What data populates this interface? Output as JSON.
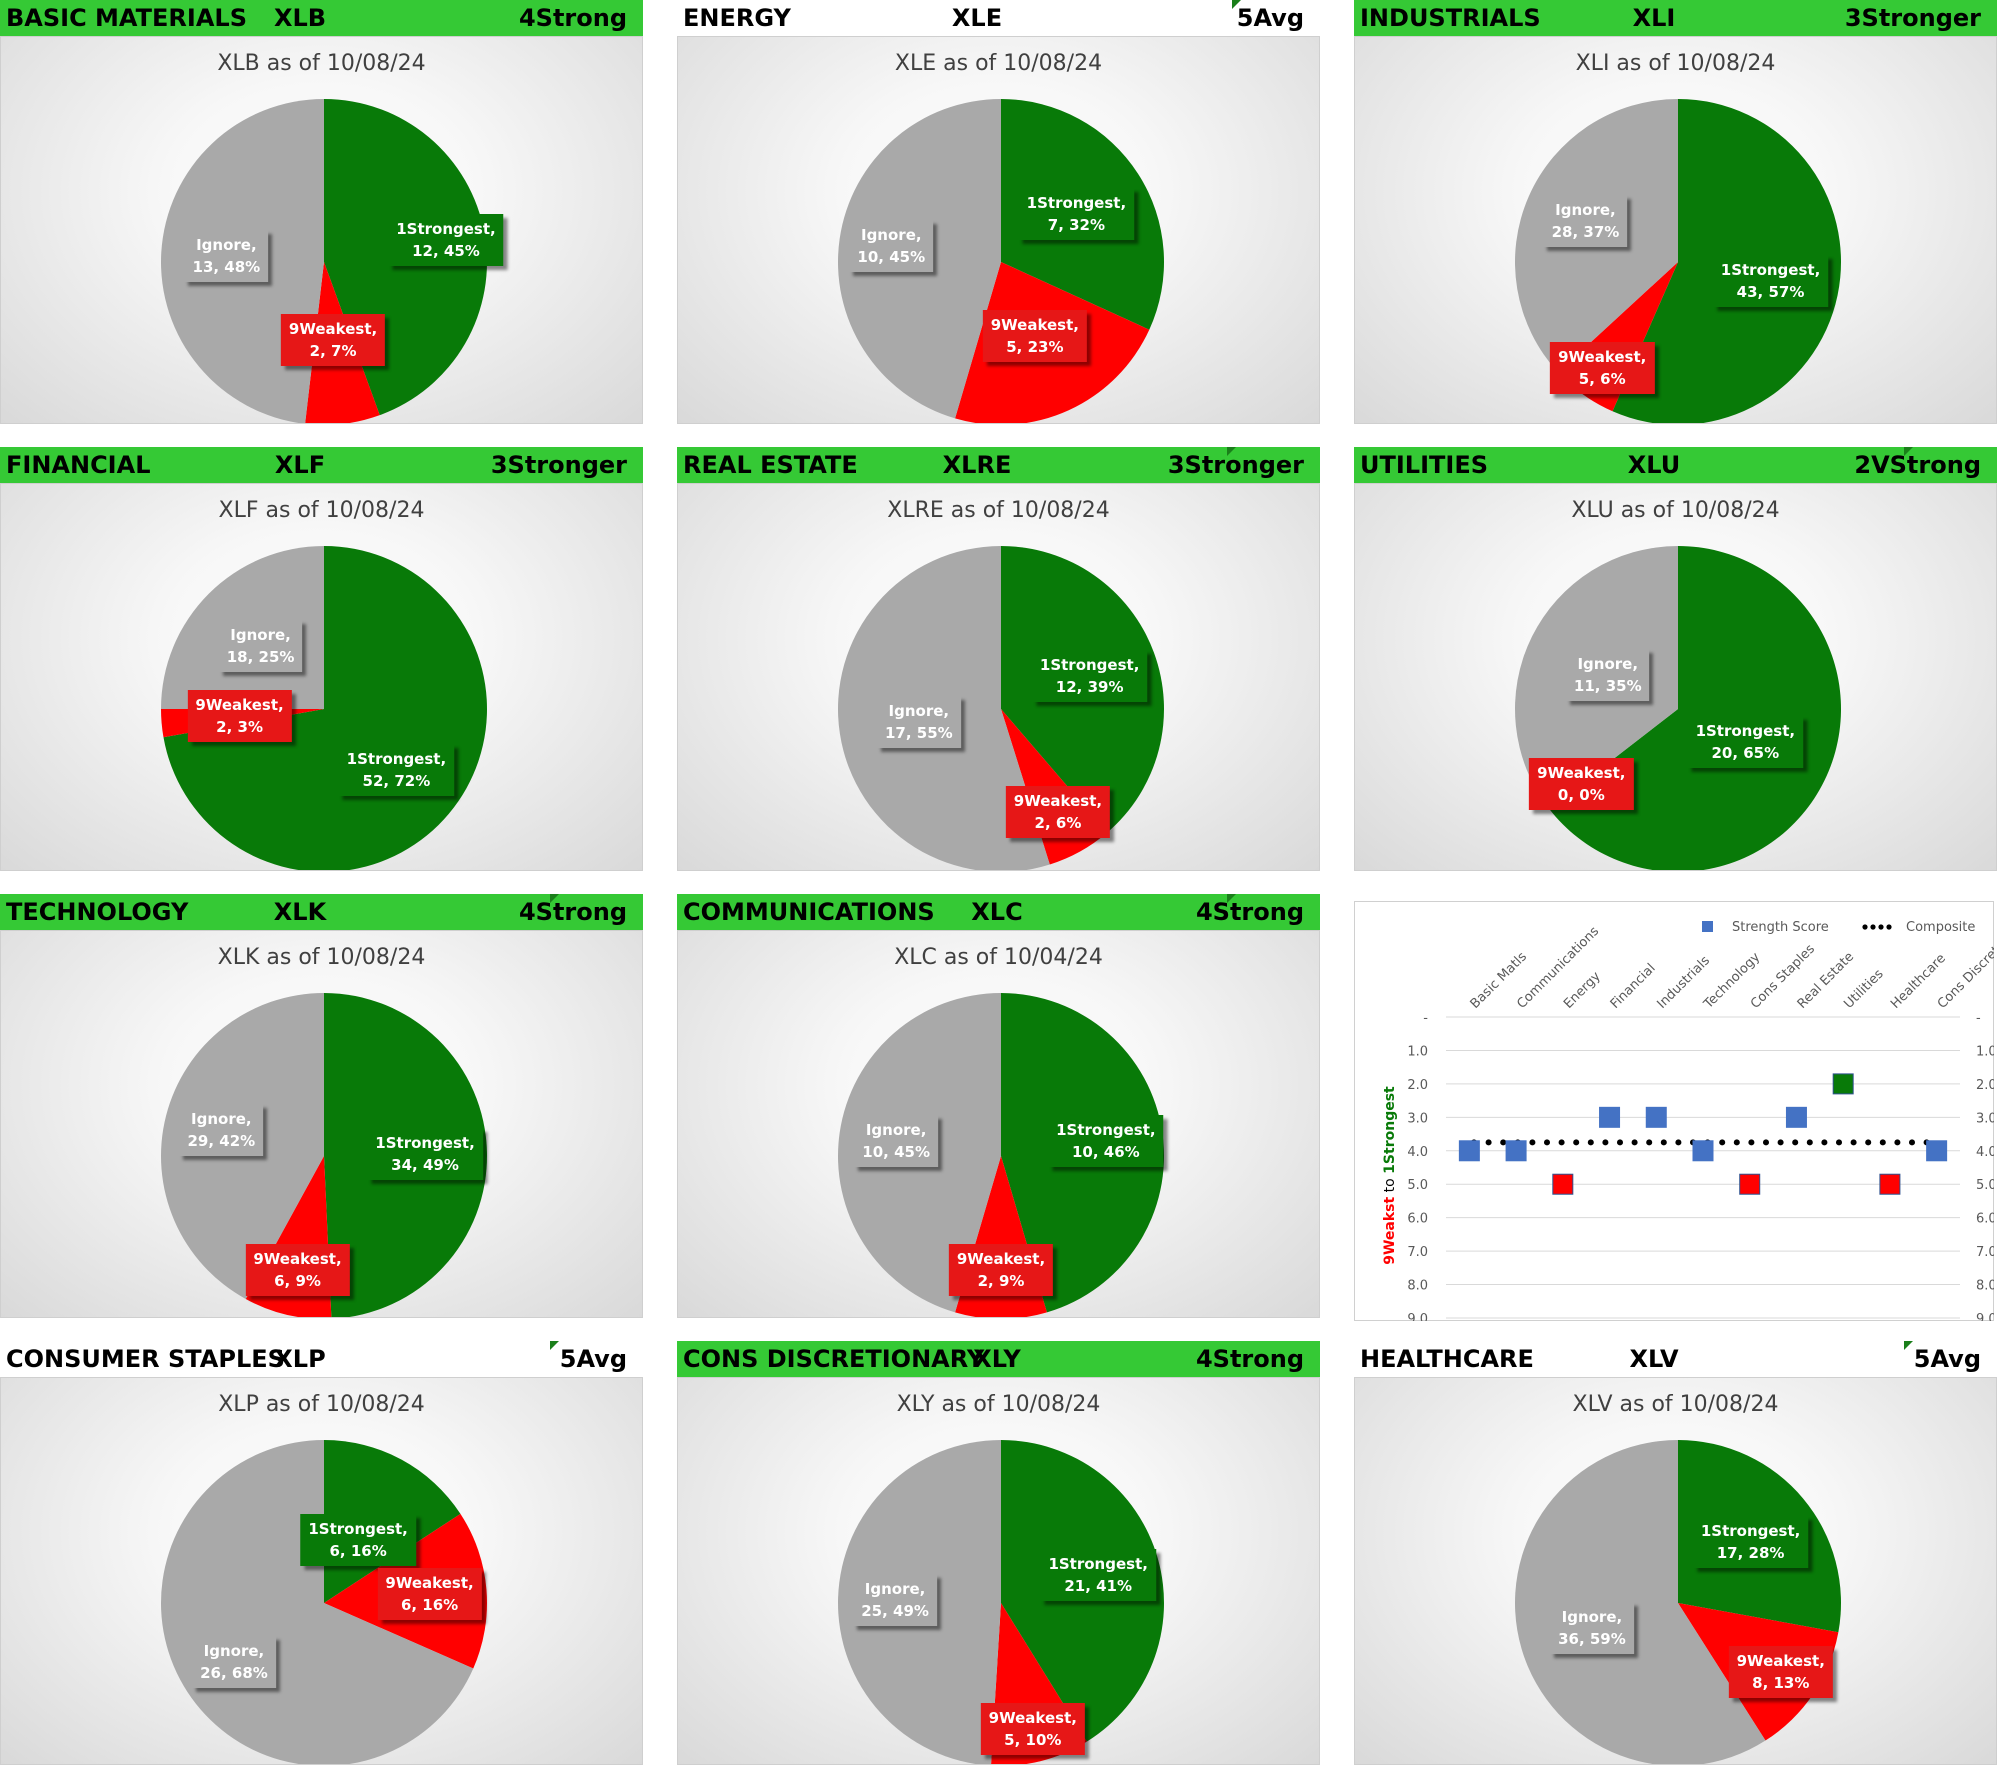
{
  "chart_data": [
    {
      "type": "pie",
      "sector": "BASIC MATERIALS",
      "ticker": "XLB",
      "rating": "4Strong",
      "header_style": "green",
      "title": "XLB as of 10/08/24",
      "slices": [
        {
          "name": "1Strongest",
          "value": 12,
          "pct": "45%",
          "color": "#087a08"
        },
        {
          "name": "9Weakest",
          "value": 2,
          "pct": "7%",
          "color": "#ff0000"
        },
        {
          "name": "Ignore",
          "value": 13,
          "pct": "48%",
          "color": "#a9a9a9"
        }
      ]
    },
    {
      "type": "pie",
      "sector": "ENERGY",
      "ticker": "XLE",
      "rating": "5Avg",
      "header_style": "white",
      "title": "XLE as of 10/08/24",
      "slices": [
        {
          "name": "1Strongest",
          "value": 7,
          "pct": "32%",
          "color": "#087a08"
        },
        {
          "name": "9Weakest",
          "value": 5,
          "pct": "23%",
          "color": "#ff0000"
        },
        {
          "name": "Ignore",
          "value": 10,
          "pct": "45%",
          "color": "#a9a9a9"
        }
      ]
    },
    {
      "type": "pie",
      "sector": "INDUSTRIALS",
      "ticker": "XLI",
      "rating": "3Stronger",
      "header_style": "green",
      "title": "XLI as of 10/08/24",
      "slices": [
        {
          "name": "1Strongest",
          "value": 43,
          "pct": "57%",
          "color": "#087a08"
        },
        {
          "name": "9Weakest",
          "value": 5,
          "pct": "6%",
          "color": "#ff0000"
        },
        {
          "name": "Ignore",
          "value": 28,
          "pct": "37%",
          "color": "#a9a9a9"
        }
      ]
    },
    {
      "type": "pie",
      "sector": "FINANCIAL",
      "ticker": "XLF",
      "rating": "3Stronger",
      "header_style": "green",
      "title": "XLF as of 10/08/24",
      "slices": [
        {
          "name": "1Strongest",
          "value": 52,
          "pct": "72%",
          "color": "#087a08"
        },
        {
          "name": "9Weakest",
          "value": 2,
          "pct": "3%",
          "color": "#ff0000"
        },
        {
          "name": "Ignore",
          "value": 18,
          "pct": "25%",
          "color": "#a9a9a9"
        }
      ]
    },
    {
      "type": "pie",
      "sector": "REAL ESTATE",
      "ticker": "XLRE",
      "rating": "3Stronger",
      "header_style": "green",
      "title": "XLRE as of 10/08/24",
      "slices": [
        {
          "name": "1Strongest",
          "value": 12,
          "pct": "39%",
          "color": "#087a08"
        },
        {
          "name": "9Weakest",
          "value": 2,
          "pct": "6%",
          "color": "#ff0000"
        },
        {
          "name": "Ignore",
          "value": 17,
          "pct": "55%",
          "color": "#a9a9a9"
        }
      ]
    },
    {
      "type": "pie",
      "sector": "UTILITIES",
      "ticker": "XLU",
      "rating": "2VStrong",
      "header_style": "green",
      "title": "XLU as of 10/08/24",
      "slices": [
        {
          "name": "1Strongest",
          "value": 20,
          "pct": "65%",
          "color": "#087a08"
        },
        {
          "name": "9Weakest",
          "value": 0,
          "pct": "0%",
          "color": "#ff0000"
        },
        {
          "name": "Ignore",
          "value": 11,
          "pct": "35%",
          "color": "#a9a9a9"
        }
      ]
    },
    {
      "type": "pie",
      "sector": "TECHNOLOGY",
      "ticker": "XLK",
      "rating": "4Strong",
      "header_style": "green",
      "title": "XLK as of 10/08/24",
      "slices": [
        {
          "name": "1Strongest",
          "value": 34,
          "pct": "49%",
          "color": "#087a08"
        },
        {
          "name": "9Weakest",
          "value": 6,
          "pct": "9%",
          "color": "#ff0000"
        },
        {
          "name": "Ignore",
          "value": 29,
          "pct": "42%",
          "color": "#a9a9a9"
        }
      ]
    },
    {
      "type": "pie",
      "sector": "COMMUNICATIONS",
      "ticker": "XLC",
      "rating": "4Strong",
      "header_style": "green",
      "title": "XLC as of 10/04/24",
      "slices": [
        {
          "name": "1Strongest",
          "value": 10,
          "pct": "46%",
          "color": "#087a08"
        },
        {
          "name": "9Weakest",
          "value": 2,
          "pct": "9%",
          "color": "#ff0000"
        },
        {
          "name": "Ignore",
          "value": 10,
          "pct": "45%",
          "color": "#a9a9a9"
        }
      ]
    },
    {
      "type": "pie",
      "sector": "CONSUMER STAPLES",
      "ticker": "XLP",
      "rating": "5Avg",
      "header_style": "white",
      "title": "XLP as of 10/08/24",
      "slices": [
        {
          "name": "1Strongest",
          "value": 6,
          "pct": "16%",
          "color": "#087a08"
        },
        {
          "name": "9Weakest",
          "value": 6,
          "pct": "16%",
          "color": "#ff0000"
        },
        {
          "name": "Ignore",
          "value": 26,
          "pct": "68%",
          "color": "#a9a9a9"
        }
      ]
    },
    {
      "type": "pie",
      "sector": "CONS DISCRETIONARY",
      "ticker": "XLY",
      "rating": "4Strong",
      "header_style": "green",
      "title": "XLY as of 10/08/24",
      "slices": [
        {
          "name": "1Strongest",
          "value": 21,
          "pct": "41%",
          "color": "#087a08"
        },
        {
          "name": "9Weakest",
          "value": 5,
          "pct": "10%",
          "color": "#ff0000"
        },
        {
          "name": "Ignore",
          "value": 25,
          "pct": "49%",
          "color": "#a9a9a9"
        }
      ]
    },
    {
      "type": "pie",
      "sector": "HEALTHCARE",
      "ticker": "XLV",
      "rating": "5Avg",
      "header_style": "white",
      "title": "XLV as of 10/08/24",
      "slices": [
        {
          "name": "1Strongest",
          "value": 17,
          "pct": "28%",
          "color": "#087a08"
        },
        {
          "name": "9Weakest",
          "value": 8,
          "pct": "13%",
          "color": "#ff0000"
        },
        {
          "name": "Ignore",
          "value": 36,
          "pct": "59%",
          "color": "#a9a9a9"
        }
      ]
    },
    {
      "type": "scatter",
      "title": "",
      "categories": [
        "Basic Matls",
        "Communications",
        "Energy",
        "Financial",
        "Industrials",
        "Technology",
        "Cons Staples",
        "Real Estate",
        "Utilities",
        "Healthcare",
        "Cons Discret"
      ],
      "series": [
        {
          "name": "Strength Score",
          "values": [
            4,
            4,
            5,
            3,
            3,
            4,
            5,
            3,
            2,
            5,
            4
          ],
          "point_colors": [
            "#4472c4",
            "#4472c4",
            "#ff0000",
            "#4472c4",
            "#4472c4",
            "#4472c4",
            "#ff0000",
            "#4472c4",
            "#087a08",
            "#ff0000",
            "#4472c4"
          ],
          "color": "#4472c4"
        },
        {
          "name": "Composite",
          "value": 3.75,
          "style": "dotted",
          "color": "#000000"
        }
      ],
      "ytick_labels": [
        "-",
        "1.0",
        "2.0",
        "3.0",
        "4.0",
        "5.0",
        "6.0",
        "7.0",
        "8.0",
        "9.0"
      ],
      "ylim": [
        0,
        9
      ],
      "y_inverted": true,
      "ylabel_parts": [
        {
          "text": "9Weakst",
          "color": "#ff0000"
        },
        {
          "text": " to ",
          "color": "#000000"
        },
        {
          "text": "1Strongest",
          "color": "#087a08"
        }
      ],
      "legend_position": "top-right"
    }
  ]
}
